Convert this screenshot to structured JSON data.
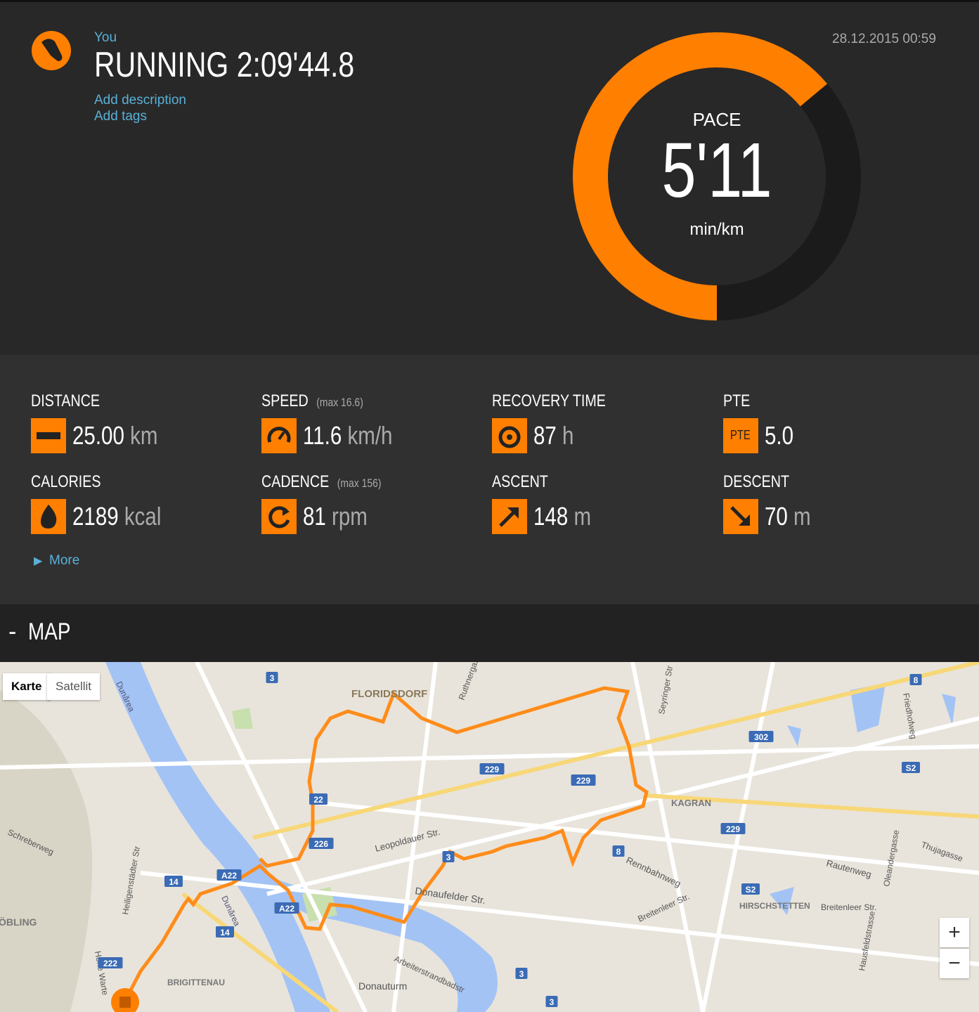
{
  "header": {
    "user": "You",
    "title": "RUNNING 2:09'44.8",
    "add_description": "Add description",
    "add_tags": "Add tags",
    "date": "28.12.2015 00:59"
  },
  "pace": {
    "label": "PACE",
    "value": "5'11",
    "unit": "min/km"
  },
  "stats": [
    {
      "label": "DISTANCE",
      "value": "25.00",
      "unit": "km"
    },
    {
      "label": "SPEED",
      "max": "(max 16.6)",
      "value": "11.6",
      "unit": "km/h"
    },
    {
      "label": "RECOVERY TIME",
      "value": "87",
      "unit": "h"
    },
    {
      "label": "PTE",
      "icon": "PTE",
      "value": "5.0"
    },
    {
      "label": "CALORIES",
      "value": "2189",
      "unit": "kcal"
    },
    {
      "label": "CADENCE",
      "max": "(max 156)",
      "value": "81",
      "unit": "rpm"
    },
    {
      "label": "ASCENT",
      "value": "148",
      "unit": "m"
    },
    {
      "label": "DESCENT",
      "value": "70",
      "unit": "m"
    }
  ],
  "more": "More",
  "map": {
    "toggle": "-",
    "title": "MAP",
    "buttons": [
      "Karte",
      "Satellit"
    ],
    "zoom_in": "+",
    "zoom_out": "−",
    "labels": [
      "FLORIDSDORF",
      "KAGRAN",
      "HIRSCHSTETTEN",
      "BRIGITTENAU",
      "ÖBLING",
      "Donauturm",
      "Leopoldauer Str.",
      "Donaufelder Str.",
      "Rennbahnweg",
      "Breitenleer Str.",
      "Breitenleer Str.",
      "Rautenweg",
      "Dunărea",
      "Dunărea",
      "Heiligenstädter Str",
      "Hohe Warte",
      "Schreberweg",
      "Friedhofweg",
      "Oleandergasse",
      "Thujagasse",
      "Arbeiterstrandbadstr",
      "Seyringer Str",
      "Ruthnergasse",
      "Hausfeldstrasse"
    ],
    "shields": [
      "3",
      "229",
      "229",
      "22",
      "226",
      "3",
      "A22",
      "A22",
      "14",
      "14",
      "222",
      "302",
      "S2",
      "S2",
      "8",
      "8",
      "229",
      "3",
      "3"
    ]
  }
}
